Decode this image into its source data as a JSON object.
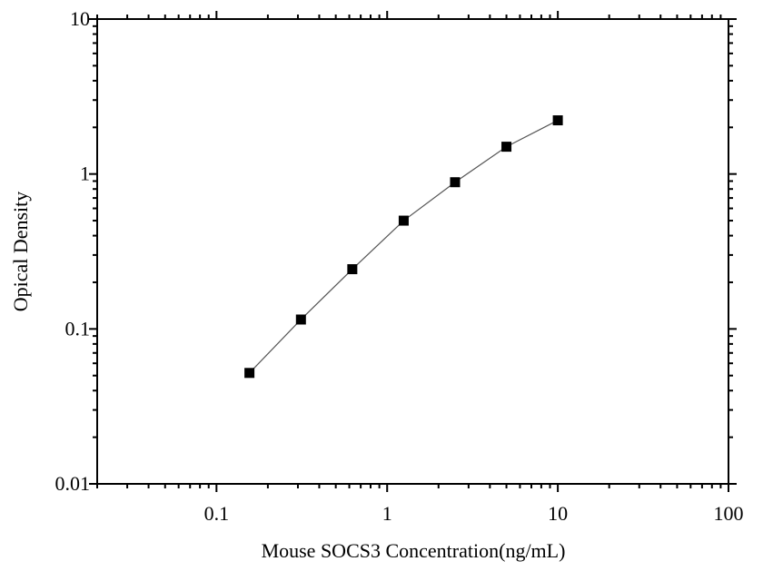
{
  "chart_data": {
    "type": "line",
    "title": "",
    "xlabel": "Mouse SOCS3 Concentration(ng/mL)",
    "ylabel": "Opical Density",
    "x_scale": "log",
    "y_scale": "log",
    "xlim": [
      0.02,
      100
    ],
    "ylim": [
      0.01,
      10
    ],
    "x_ticks": [
      "0.1",
      "1",
      "10",
      "100"
    ],
    "y_ticks": [
      "0.01",
      "0.1",
      "1",
      "10"
    ],
    "grid": false,
    "marker": "square",
    "series": [
      {
        "x": [
          0.156,
          0.3125,
          0.625,
          1.25,
          2.5,
          5,
          10
        ],
        "y": [
          0.052,
          0.115,
          0.243,
          0.5,
          0.885,
          1.5,
          2.22
        ]
      }
    ],
    "colors": {
      "marker": "#000000",
      "line": "#555555",
      "axis": "#000000"
    }
  }
}
